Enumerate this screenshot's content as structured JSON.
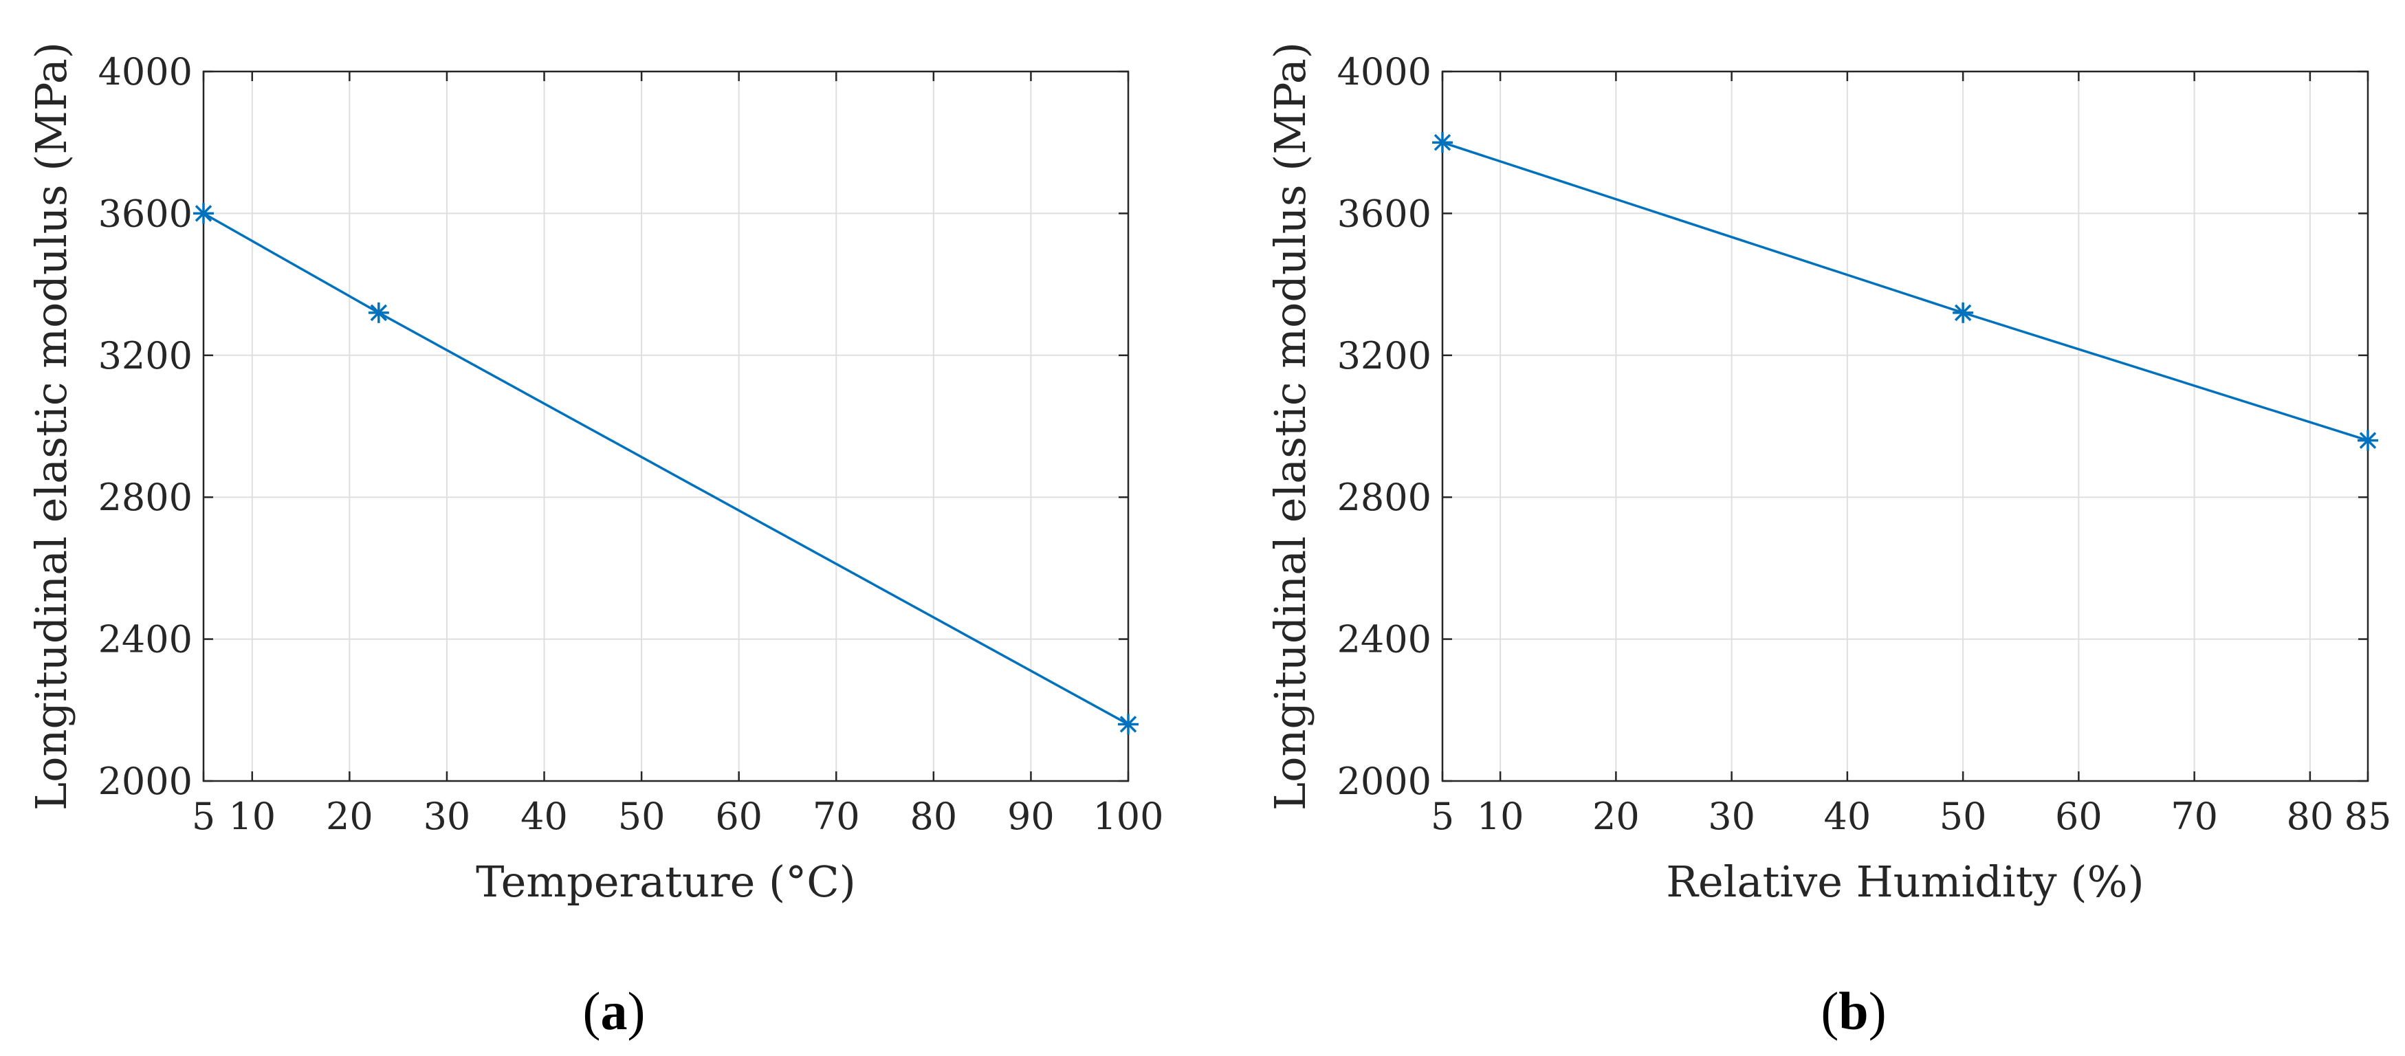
{
  "figure": {
    "panel_a_label": {
      "open": "(",
      "letter": "a",
      "close": ")"
    },
    "panel_b_label": {
      "open": "(",
      "letter": "b",
      "close": ")"
    }
  },
  "colors": {
    "series": "#0072BD",
    "grid": "#DFDFDF",
    "axis": "#262626",
    "background": "#FFFFFF"
  },
  "chart_data": [
    {
      "type": "line",
      "marker": "asterisk",
      "title": "",
      "xlabel": "Temperature (°C)",
      "ylabel": "Longitudinal elastic modulus (MPa)",
      "xlim": [
        5,
        100
      ],
      "ylim": [
        2000,
        4000
      ],
      "xticks": [
        5,
        10,
        20,
        30,
        40,
        50,
        60,
        70,
        80,
        90,
        100
      ],
      "yticks": [
        2000,
        2400,
        2800,
        3200,
        3600,
        4000
      ],
      "grid": true,
      "series": [
        {
          "x": [
            5,
            23,
            100
          ],
          "y": [
            3600,
            3320,
            2160
          ]
        }
      ]
    },
    {
      "type": "line",
      "marker": "asterisk",
      "title": "",
      "xlabel": "Relative Humidity (%)",
      "ylabel": "Longitudinal elastic modulus (MPa)",
      "xlim": [
        5,
        85
      ],
      "ylim": [
        2000,
        4000
      ],
      "xticks": [
        5,
        10,
        20,
        30,
        40,
        50,
        60,
        70,
        80,
        85
      ],
      "yticks": [
        2000,
        2400,
        2800,
        3200,
        3600,
        4000
      ],
      "grid": true,
      "series": [
        {
          "x": [
            5,
            50,
            85
          ],
          "y": [
            3800,
            3320,
            2960
          ]
        }
      ]
    }
  ]
}
